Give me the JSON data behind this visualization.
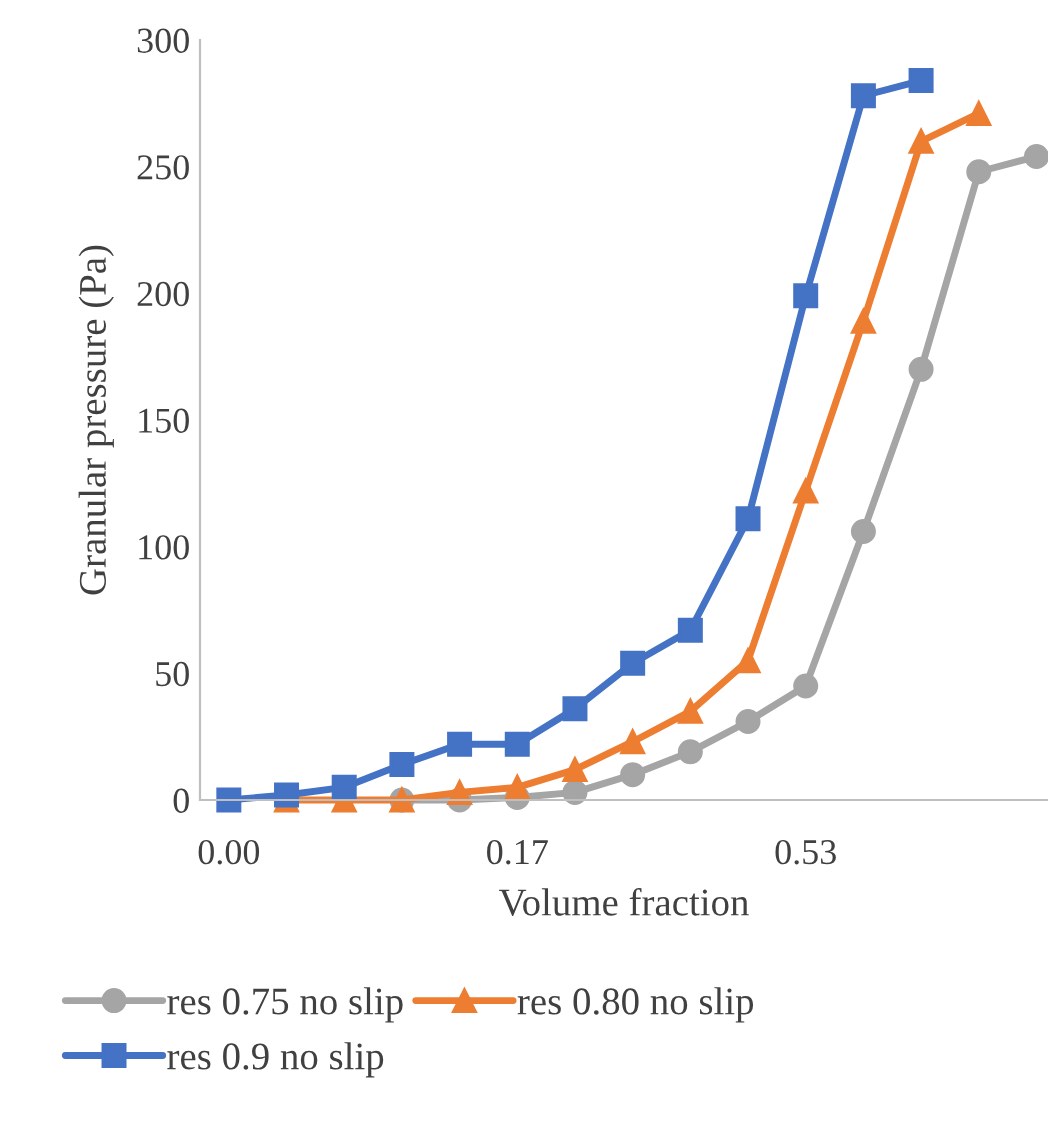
{
  "chart_data": {
    "type": "line",
    "xlabel": "Volume fraction",
    "ylabel": "Granular pressure (Pa)",
    "categories": [
      "0.00",
      null,
      null,
      null,
      null,
      "0.17",
      null,
      null,
      null,
      null,
      "0.53",
      null,
      null,
      null,
      null
    ],
    "ylim": [
      0,
      300
    ],
    "yticks": [
      0,
      50,
      100,
      150,
      200,
      250,
      300
    ],
    "grid": false,
    "legend": "bottom",
    "series": [
      {
        "name": "res 0.75 no slip",
        "color": "#a5a5a5",
        "marker": "circle",
        "values": [
          null,
          null,
          null,
          0,
          0,
          1,
          3,
          10,
          19,
          31,
          45,
          106,
          170,
          248,
          254
        ]
      },
      {
        "name": "res 0.80 no slip",
        "color": "#ed7d31",
        "marker": "triangle",
        "values": [
          null,
          0,
          0,
          0,
          3,
          5,
          12,
          23,
          35,
          55,
          122,
          189,
          260,
          271,
          null
        ]
      },
      {
        "name": "res 0.9 no slip",
        "color": "#4472c4",
        "marker": "square",
        "values": [
          0,
          2,
          5,
          14,
          22,
          22,
          36,
          54,
          67,
          111,
          199,
          278,
          284,
          null,
          null
        ]
      }
    ]
  }
}
